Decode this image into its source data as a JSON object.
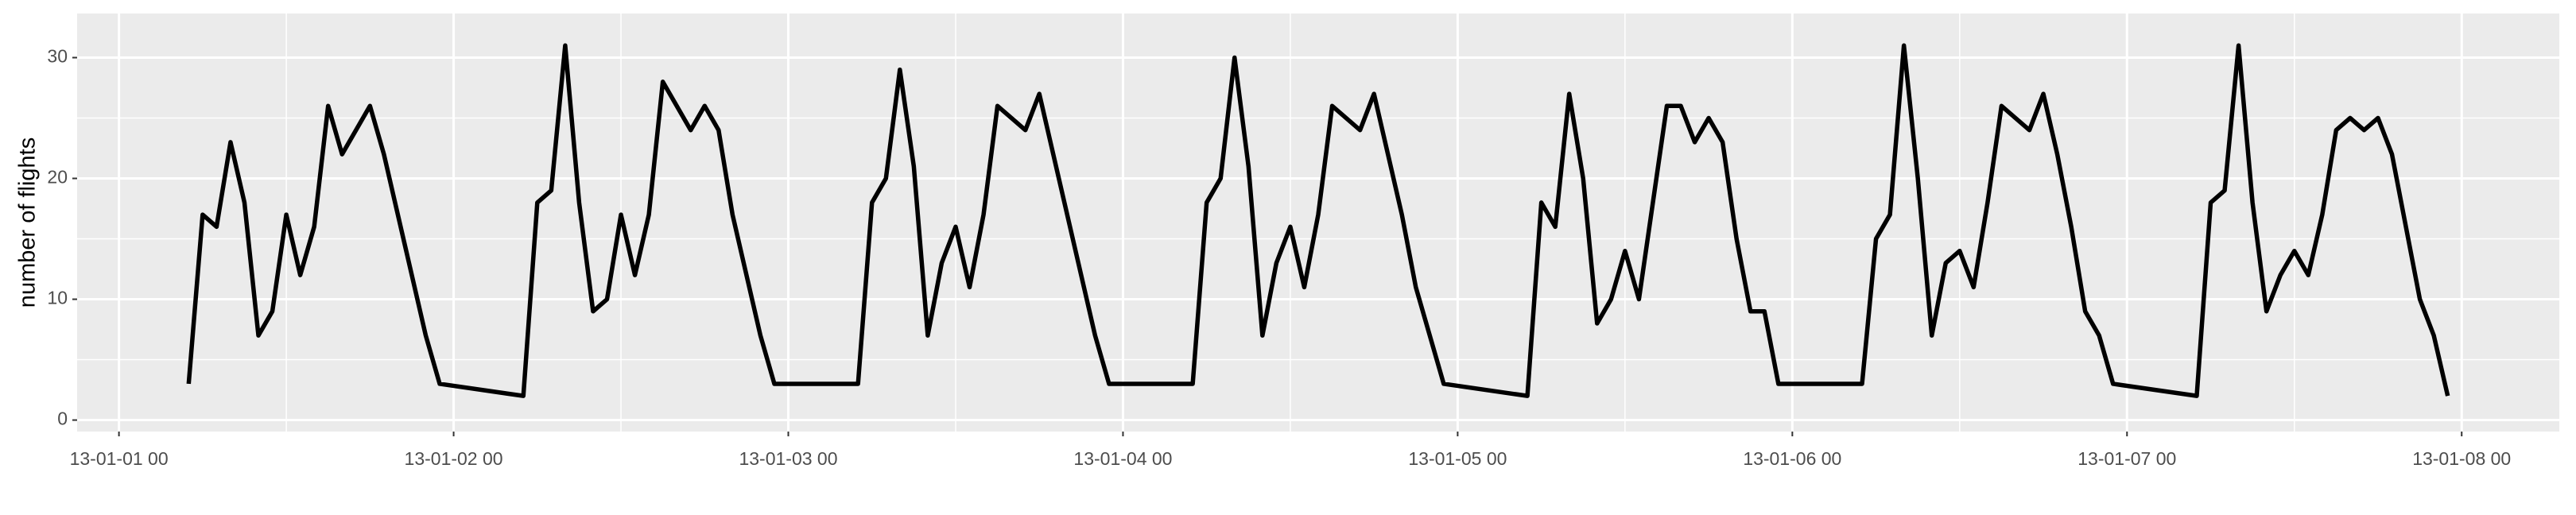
{
  "chart_data": {
    "type": "line",
    "y_label": "number of flights",
    "x": [
      "13-01-01 05",
      "13-01-01 06",
      "13-01-01 07",
      "13-01-01 08",
      "13-01-01 09",
      "13-01-01 10",
      "13-01-01 11",
      "13-01-01 12",
      "13-01-01 13",
      "13-01-01 14",
      "13-01-01 15",
      "13-01-01 16",
      "13-01-01 18",
      "13-01-01 19",
      "13-01-01 22",
      "13-01-01 23",
      "13-01-02 05",
      "13-01-02 06",
      "13-01-02 07",
      "13-01-02 08",
      "13-01-02 09",
      "13-01-02 10",
      "13-01-02 11",
      "13-01-02 12",
      "13-01-02 13",
      "13-01-02 14",
      "13-01-02 15",
      "13-01-02 17",
      "13-01-02 18",
      "13-01-02 19",
      "13-01-02 20",
      "13-01-02 22",
      "13-01-02 23",
      "13-01-03 05",
      "13-01-03 06",
      "13-01-03 07",
      "13-01-03 08",
      "13-01-03 09",
      "13-01-03 10",
      "13-01-03 11",
      "13-01-03 12",
      "13-01-03 13",
      "13-01-03 14",
      "13-01-03 15",
      "13-01-03 17",
      "13-01-03 18",
      "13-01-03 22",
      "13-01-03 23",
      "13-01-04 05",
      "13-01-04 06",
      "13-01-04 07",
      "13-01-04 08",
      "13-01-04 09",
      "13-01-04 10",
      "13-01-04 11",
      "13-01-04 12",
      "13-01-04 13",
      "13-01-04 14",
      "13-01-04 15",
      "13-01-04 17",
      "13-01-04 18",
      "13-01-04 20",
      "13-01-04 21",
      "13-01-04 23",
      "13-01-05 05",
      "13-01-05 06",
      "13-01-05 07",
      "13-01-05 08",
      "13-01-05 09",
      "13-01-05 10",
      "13-01-05 11",
      "13-01-05 12",
      "13-01-05 13",
      "13-01-05 15",
      "13-01-05 16",
      "13-01-05 17",
      "13-01-05 18",
      "13-01-05 19",
      "13-01-05 20",
      "13-01-05 21",
      "13-01-05 22",
      "13-01-05 23",
      "13-01-06 05",
      "13-01-06 06",
      "13-01-06 07",
      "13-01-06 08",
      "13-01-06 09",
      "13-01-06 10",
      "13-01-06 11",
      "13-01-06 12",
      "13-01-06 13",
      "13-01-06 14",
      "13-01-06 15",
      "13-01-06 17",
      "13-01-06 18",
      "13-01-06 19",
      "13-01-06 20",
      "13-01-06 21",
      "13-01-06 22",
      "13-01-06 23",
      "13-01-07 05",
      "13-01-07 06",
      "13-01-07 07",
      "13-01-07 08",
      "13-01-07 09",
      "13-01-07 10",
      "13-01-07 11",
      "13-01-07 12",
      "13-01-07 13",
      "13-01-07 14",
      "13-01-07 15",
      "13-01-07 16",
      "13-01-07 17",
      "13-01-07 18",
      "13-01-07 19",
      "13-01-07 21",
      "13-01-07 22",
      "13-01-07 23"
    ],
    "values": [
      3,
      17,
      16,
      23,
      18,
      7,
      9,
      17,
      12,
      16,
      26,
      22,
      26,
      22,
      7,
      3,
      2,
      18,
      19,
      31,
      18,
      9,
      10,
      17,
      12,
      17,
      28,
      24,
      26,
      24,
      17,
      7,
      3,
      3,
      18,
      20,
      29,
      21,
      7,
      13,
      16,
      11,
      17,
      26,
      24,
      27,
      7,
      3,
      3,
      18,
      20,
      30,
      21,
      7,
      13,
      16,
      11,
      17,
      26,
      24,
      27,
      17,
      11,
      3,
      2,
      18,
      16,
      27,
      20,
      8,
      10,
      14,
      10,
      26,
      26,
      23,
      25,
      23,
      15,
      9,
      9,
      3,
      3,
      15,
      17,
      31,
      20,
      7,
      13,
      14,
      11,
      18,
      26,
      24,
      27,
      22,
      16,
      9,
      7,
      3,
      2,
      18,
      19,
      31,
      18,
      9,
      12,
      14,
      12,
      17,
      24,
      25,
      24,
      25,
      22,
      10,
      7,
      2
    ],
    "color": "#000000",
    "xlim": [
      "12-12-31 21",
      "13-01-08 07"
    ],
    "xticks": [
      "13-01-01 00",
      "13-01-02 00",
      "13-01-03 00",
      "13-01-04 00",
      "13-01-05 00",
      "13-01-06 00",
      "13-01-07 00",
      "13-01-08 00"
    ],
    "ylim": [
      -0.95,
      33.65
    ],
    "yticks": [
      0,
      10,
      20,
      30
    ],
    "grid": true
  }
}
